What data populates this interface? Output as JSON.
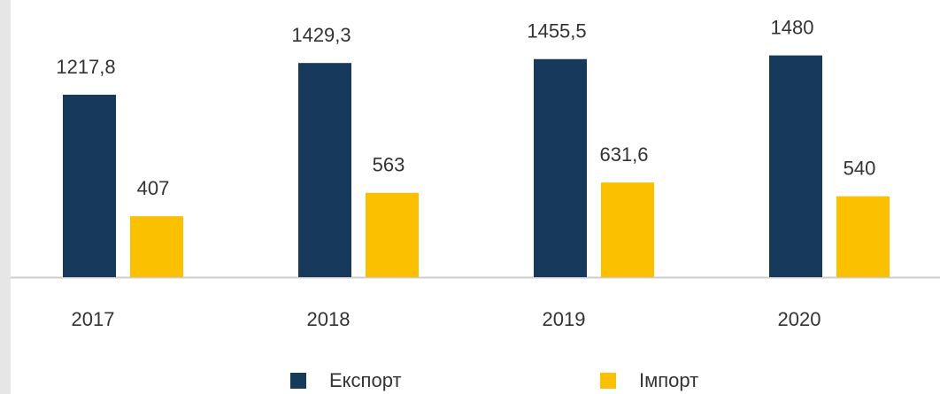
{
  "chart_data": {
    "type": "bar",
    "categories": [
      "2017",
      "2018",
      "2019",
      "2020"
    ],
    "series": [
      {
        "name": "Експорт",
        "color": "#173a5c",
        "values": [
          1217.8,
          1429.3,
          1455.5,
          1480
        ],
        "value_labels": [
          "1217,8",
          "1429,3",
          "1455,5",
          "1480"
        ]
      },
      {
        "name": "Імпорт",
        "color": "#fbc100",
        "values": [
          407,
          563,
          631.6,
          540
        ],
        "value_labels": [
          "407",
          "563",
          "631,6",
          "540"
        ]
      }
    ],
    "ylim": [
      0,
      1850
    ]
  }
}
